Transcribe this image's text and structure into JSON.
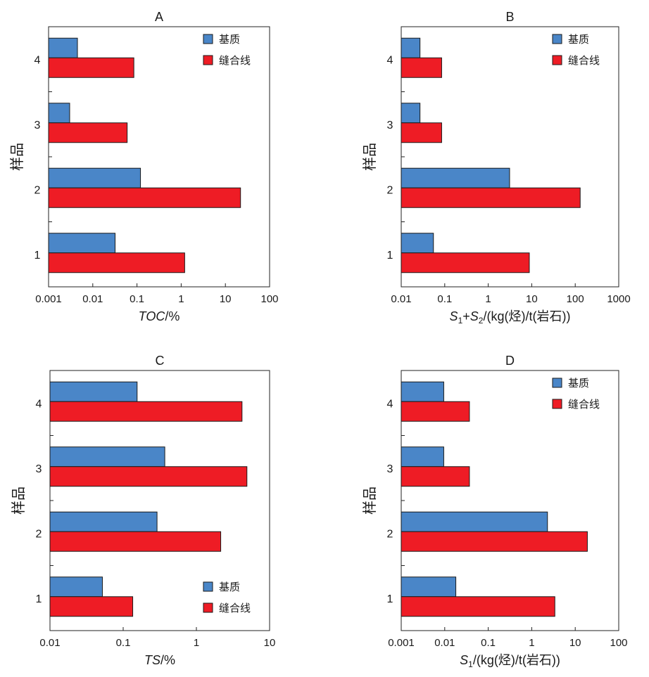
{
  "colors": {
    "matrix": "#4a86c8",
    "suture": "#ee1c25",
    "axis": "#222222"
  },
  "chart_data": [
    {
      "type": "bar",
      "orientation": "horizontal",
      "panel": "A",
      "title": "A",
      "scale": "log",
      "xlim": [
        0.001,
        100
      ],
      "xticks": [
        "0.001",
        "0.01",
        "0.1",
        "1",
        "10",
        "100"
      ],
      "xlabel": {
        "parts": [
          {
            "t": "TOC",
            "i": true
          },
          {
            "t": "/%"
          }
        ]
      },
      "ylabel": "样品",
      "categories": [
        "1",
        "2",
        "3",
        "4"
      ],
      "legend": "top-right",
      "series": [
        {
          "name": "基质",
          "values": [
            0.032,
            0.12,
            0.003,
            0.0045
          ]
        },
        {
          "name": "缝合线",
          "values": [
            1.2,
            22.0,
            0.06,
            0.085
          ]
        }
      ]
    },
    {
      "type": "bar",
      "orientation": "horizontal",
      "panel": "B",
      "title": "B",
      "scale": "log",
      "xlim": [
        0.01,
        1000
      ],
      "xticks": [
        "0.01",
        "0.1",
        "1",
        "10",
        "100",
        "1000"
      ],
      "xlabel": {
        "parts": [
          {
            "t": "S",
            "i": true
          },
          {
            "t": "1",
            "sub": true
          },
          {
            "t": "+"
          },
          {
            "t": "S",
            "i": true
          },
          {
            "t": "2",
            "sub": true
          },
          {
            "t": "/(kg(烃)/t(岩石))"
          }
        ]
      },
      "ylabel": "样品",
      "categories": [
        "1",
        "2",
        "3",
        "4"
      ],
      "legend": "top-right",
      "series": [
        {
          "name": "基质",
          "values": [
            0.055,
            3.1,
            0.027,
            0.027
          ]
        },
        {
          "name": "缝合线",
          "values": [
            8.8,
            130,
            0.085,
            0.085
          ]
        }
      ]
    },
    {
      "type": "bar",
      "orientation": "horizontal",
      "panel": "C",
      "title": "C",
      "scale": "log",
      "xlim": [
        0.01,
        10
      ],
      "xticks": [
        "0.01",
        "0.1",
        "1",
        "10"
      ],
      "xlabel": {
        "parts": [
          {
            "t": "TS",
            "i": true
          },
          {
            "t": "/%"
          }
        ]
      },
      "ylabel": "样品",
      "categories": [
        "1",
        "2",
        "3",
        "4"
      ],
      "legend": "bottom-right",
      "series": [
        {
          "name": "基质",
          "values": [
            0.052,
            0.29,
            0.37,
            0.155
          ]
        },
        {
          "name": "缝合线",
          "values": [
            0.135,
            2.15,
            4.9,
            4.2
          ]
        }
      ]
    },
    {
      "type": "bar",
      "orientation": "horizontal",
      "panel": "D",
      "title": "D",
      "scale": "log",
      "xlim": [
        0.001,
        100
      ],
      "xticks": [
        "0.001",
        "0.01",
        "0.1",
        "1",
        "10",
        "100"
      ],
      "xlabel": {
        "parts": [
          {
            "t": "S",
            "i": true
          },
          {
            "t": "1",
            "sub": true
          },
          {
            "t": "/(kg(烃)/t(岩石))"
          }
        ]
      },
      "ylabel": "样品",
      "categories": [
        "1",
        "2",
        "3",
        "4"
      ],
      "legend": "top-right",
      "series": [
        {
          "name": "基质",
          "values": [
            0.018,
            2.3,
            0.0095,
            0.0095
          ]
        },
        {
          "name": "缝合线",
          "values": [
            3.4,
            19.0,
            0.037,
            0.037
          ]
        }
      ]
    }
  ]
}
